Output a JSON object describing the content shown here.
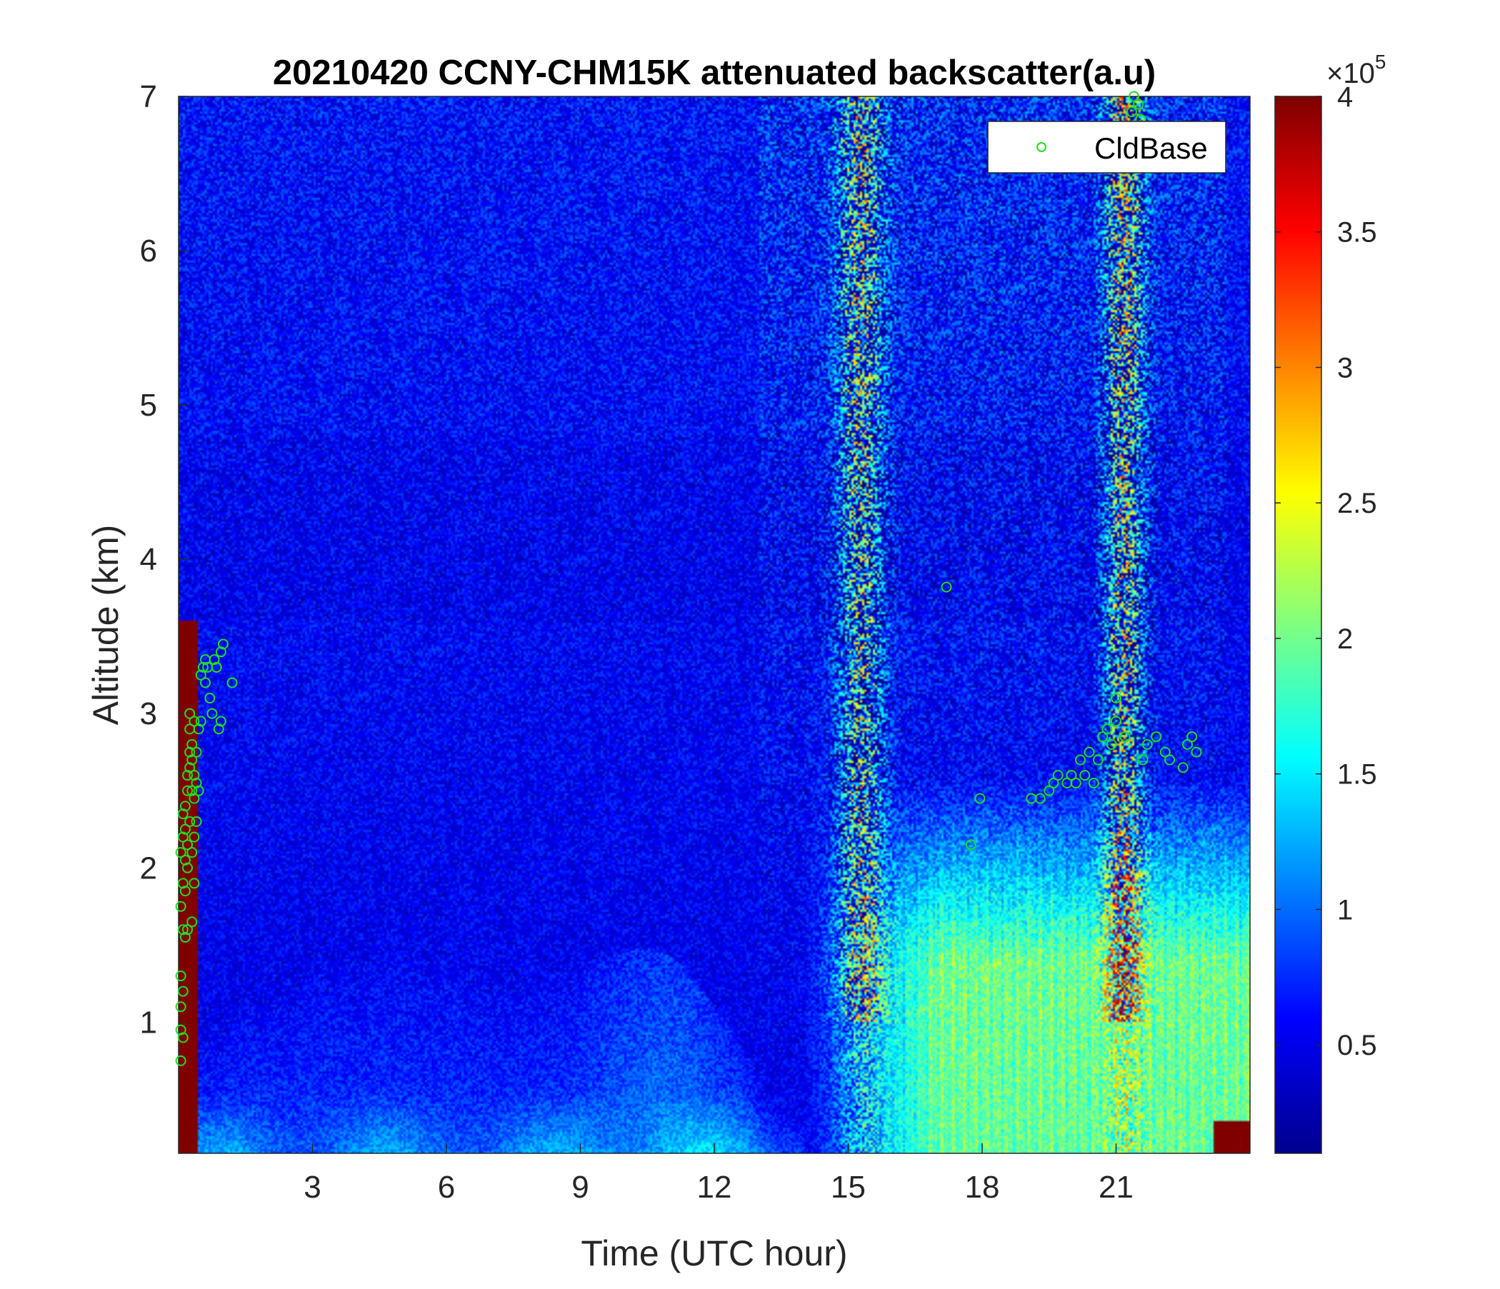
{
  "chart_data": {
    "type": "heatmap",
    "title": "20210420 CCNY-CHM15K attenuated backscatter(a.u)",
    "xlabel": "Time (UTC hour)",
    "ylabel": "Altitude (km)",
    "xlim": [
      0,
      24
    ],
    "ylim": [
      0.15,
      7
    ],
    "xticks": [
      3,
      6,
      9,
      12,
      15,
      18,
      21
    ],
    "yticks": [
      1,
      2,
      3,
      4,
      5,
      6,
      7
    ],
    "grid": false,
    "colormap": "jet",
    "colors": {
      "jet": [
        "#00008f",
        "#0000ff",
        "#0080ff",
        "#00ffff",
        "#80ff80",
        "#ffff00",
        "#ff8000",
        "#ff0000",
        "#800000"
      ],
      "marker": "#22dd22"
    },
    "colorbar": {
      "min": 0.1,
      "max": 4,
      "ticks": [
        0.5,
        1,
        1.5,
        2,
        2.5,
        3,
        3.5,
        4
      ],
      "exponent_label": "×10",
      "exponent": "5"
    },
    "legend": {
      "position": "top-right",
      "entries": [
        "CldBase"
      ]
    },
    "series": [
      {
        "name": "CldBase",
        "type": "scatter",
        "points": [
          [
            0.05,
            0.75
          ],
          [
            0.05,
            0.95
          ],
          [
            0.05,
            1.1
          ],
          [
            0.05,
            1.3
          ],
          [
            0.05,
            1.75
          ],
          [
            0.05,
            2.1
          ],
          [
            0.1,
            0.9
          ],
          [
            0.1,
            1.2
          ],
          [
            0.1,
            1.6
          ],
          [
            0.1,
            1.9
          ],
          [
            0.1,
            2.2
          ],
          [
            0.1,
            2.35
          ],
          [
            0.15,
            1.55
          ],
          [
            0.15,
            1.85
          ],
          [
            0.15,
            2.05
          ],
          [
            0.15,
            2.25
          ],
          [
            0.15,
            2.4
          ],
          [
            0.2,
            1.6
          ],
          [
            0.2,
            2.0
          ],
          [
            0.2,
            2.15
          ],
          [
            0.2,
            2.5
          ],
          [
            0.2,
            2.6
          ],
          [
            0.25,
            2.3
          ],
          [
            0.25,
            2.65
          ],
          [
            0.25,
            2.75
          ],
          [
            0.25,
            2.9
          ],
          [
            0.25,
            3.0
          ],
          [
            0.3,
            1.65
          ],
          [
            0.3,
            2.1
          ],
          [
            0.3,
            2.5
          ],
          [
            0.3,
            2.7
          ],
          [
            0.3,
            2.8
          ],
          [
            0.35,
            1.9
          ],
          [
            0.35,
            2.2
          ],
          [
            0.35,
            2.45
          ],
          [
            0.35,
            2.6
          ],
          [
            0.35,
            2.95
          ],
          [
            0.4,
            2.3
          ],
          [
            0.4,
            2.55
          ],
          [
            0.4,
            2.75
          ],
          [
            0.45,
            2.5
          ],
          [
            0.45,
            2.9
          ],
          [
            0.5,
            2.95
          ],
          [
            0.5,
            3.25
          ],
          [
            0.55,
            3.3
          ],
          [
            0.6,
            3.2
          ],
          [
            0.6,
            3.35
          ],
          [
            0.65,
            3.3
          ],
          [
            0.7,
            3.1
          ],
          [
            0.75,
            3.0
          ],
          [
            0.8,
            3.35
          ],
          [
            0.85,
            3.3
          ],
          [
            0.9,
            2.9
          ],
          [
            0.95,
            2.95
          ],
          [
            0.95,
            3.4
          ],
          [
            1.0,
            3.45
          ],
          [
            1.2,
            3.2
          ],
          [
            17.2,
            3.82
          ],
          [
            17.75,
            2.15
          ],
          [
            17.95,
            2.45
          ],
          [
            19.1,
            2.45
          ],
          [
            19.3,
            2.45
          ],
          [
            19.5,
            2.5
          ],
          [
            19.6,
            2.55
          ],
          [
            19.7,
            2.6
          ],
          [
            19.9,
            2.55
          ],
          [
            20.0,
            2.6
          ],
          [
            20.1,
            2.55
          ],
          [
            20.2,
            2.7
          ],
          [
            20.3,
            2.6
          ],
          [
            20.4,
            2.75
          ],
          [
            20.5,
            2.55
          ],
          [
            20.6,
            2.7
          ],
          [
            20.7,
            2.85
          ],
          [
            20.8,
            2.9
          ],
          [
            20.9,
            2.8
          ],
          [
            21.0,
            2.95
          ],
          [
            21.0,
            3.1
          ],
          [
            21.2,
            2.85
          ],
          [
            21.35,
            6.9
          ],
          [
            21.4,
            7.0
          ],
          [
            21.5,
            6.95
          ],
          [
            21.55,
            6.85
          ],
          [
            21.6,
            2.7
          ],
          [
            21.7,
            2.8
          ],
          [
            21.9,
            2.85
          ],
          [
            22.1,
            2.75
          ],
          [
            22.2,
            2.7
          ],
          [
            22.5,
            2.65
          ],
          [
            22.6,
            2.8
          ],
          [
            22.7,
            2.85
          ],
          [
            22.8,
            2.75
          ]
        ]
      }
    ]
  }
}
